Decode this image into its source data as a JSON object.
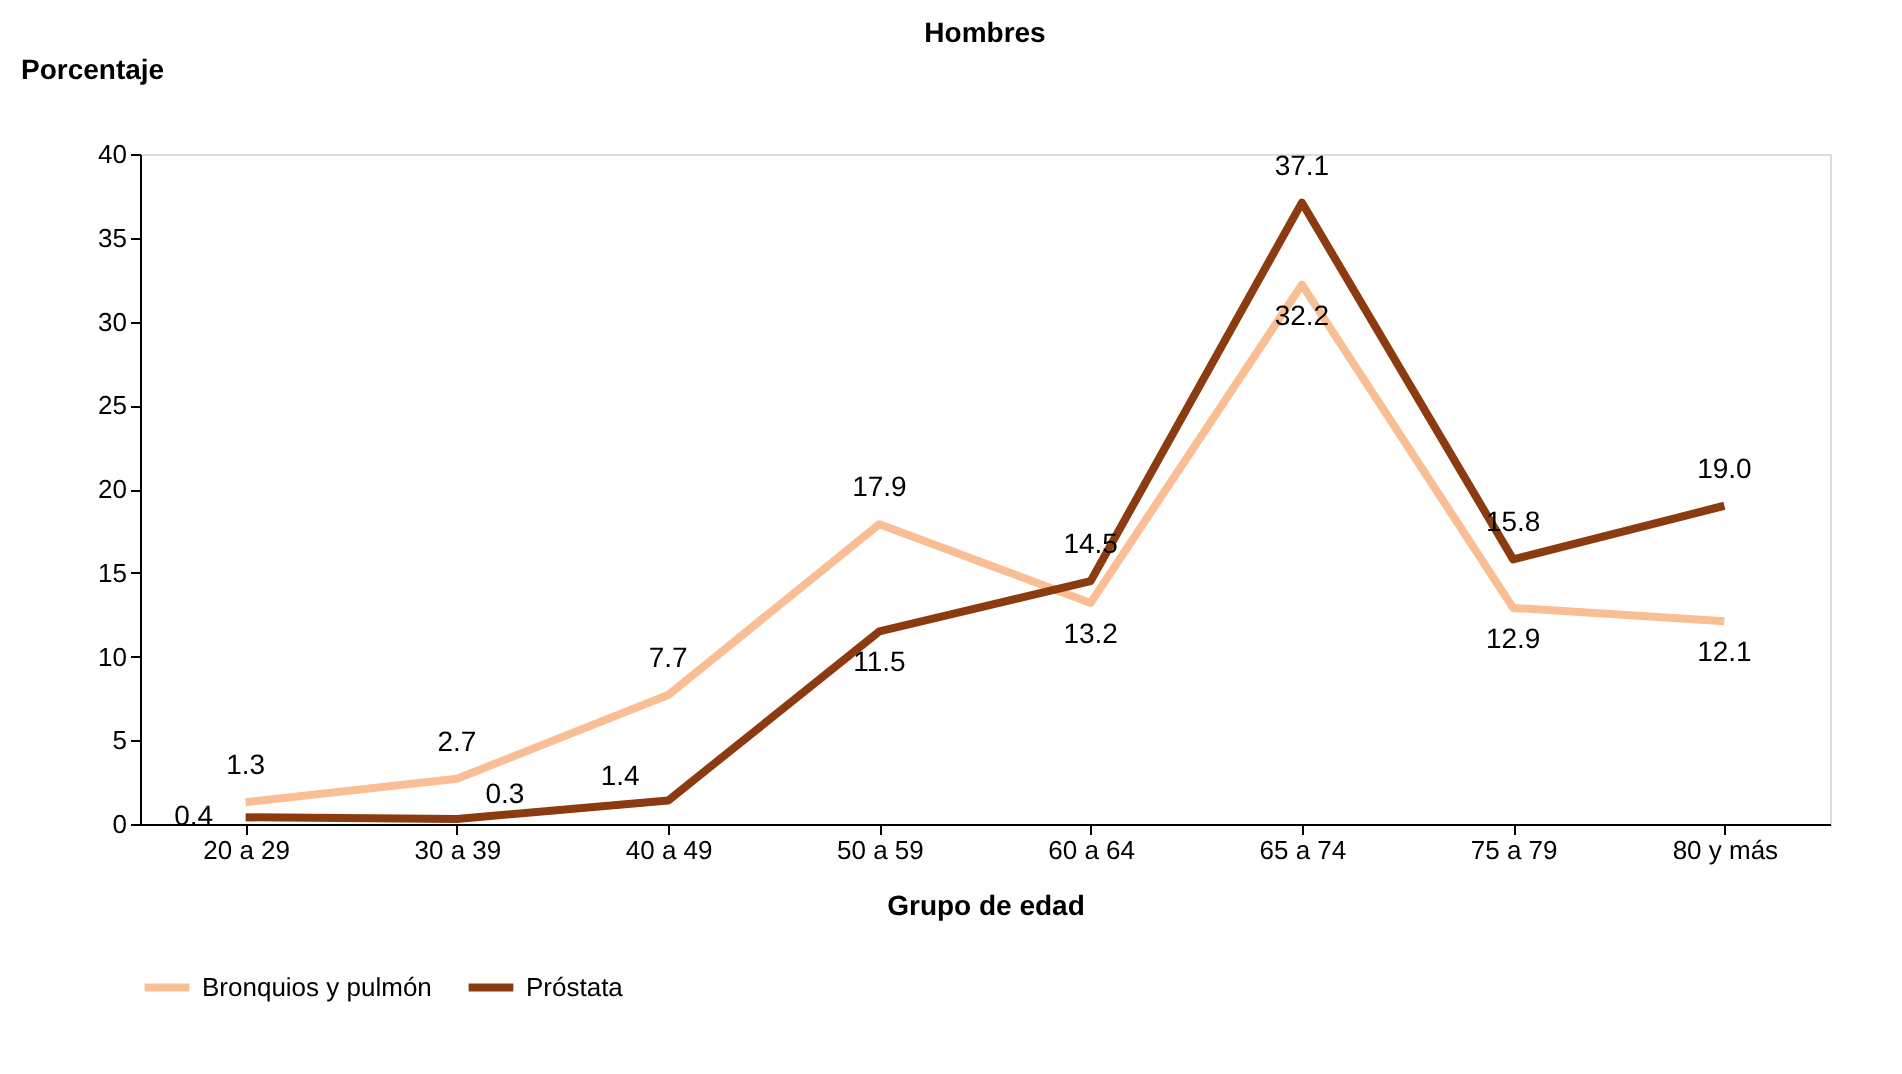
{
  "chart_data": {
    "type": "line",
    "title": "Hombres",
    "xlabel": "Grupo de edad",
    "ylabel": "Porcentaje",
    "categories": [
      "20 a 29",
      "30 a 39",
      "40 a 49",
      "50 a 59",
      "60 a 64",
      "65 a 74",
      "75 a 79",
      "80 y más"
    ],
    "series": [
      {
        "name": "Bronquios y pulmón",
        "color": "#f9be93",
        "values": [
          1.3,
          2.7,
          7.7,
          17.9,
          13.2,
          32.2,
          12.9,
          12.1
        ],
        "value_labels": [
          "1.3",
          "2.7",
          "7.7",
          "17.9",
          "13.2",
          "32.2",
          "12.9",
          "12.1"
        ]
      },
      {
        "name": "Próstata",
        "color": "#8b3b0f",
        "values": [
          0.4,
          0.3,
          1.4,
          11.5,
          14.5,
          37.1,
          15.8,
          19.0
        ],
        "value_labels": [
          "0.4",
          "0.3",
          "1.4",
          "11.5",
          "14.5",
          "37.1",
          "15.8",
          "19.0"
        ]
      }
    ],
    "ylim": [
      0,
      40
    ],
    "yticks": [
      0,
      5,
      10,
      15,
      20,
      25,
      30,
      35,
      40
    ],
    "grid": false,
    "legend": "bottom",
    "marker": "none",
    "line_style": "solid"
  }
}
